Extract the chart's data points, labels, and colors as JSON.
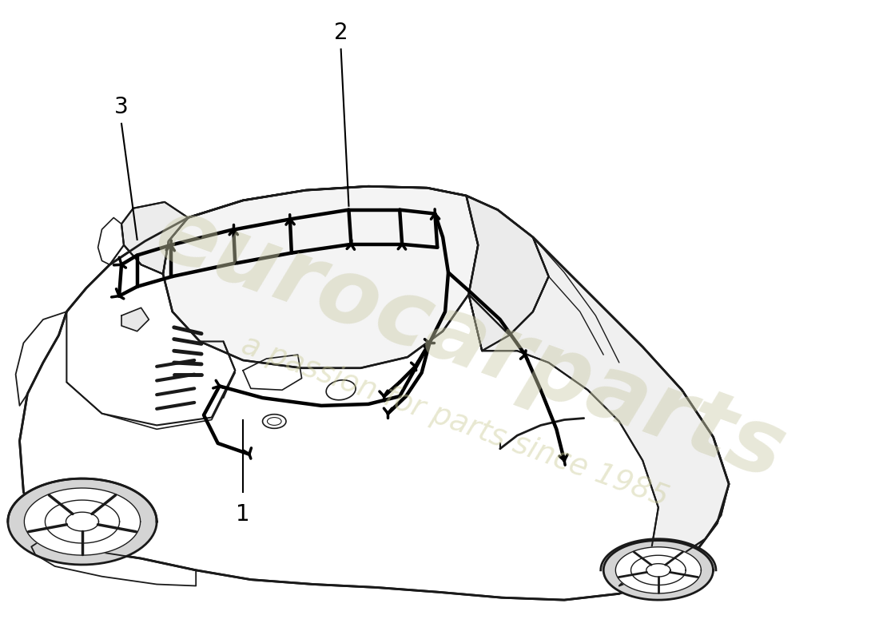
{
  "background_color": "#ffffff",
  "line_color": "#1a1a1a",
  "wiring_color": "#000000",
  "watermark_text1": "eurocarparts",
  "watermark_text2": "a passion for parts since 1985",
  "figsize": [
    11.0,
    8.0
  ],
  "dpi": 100
}
